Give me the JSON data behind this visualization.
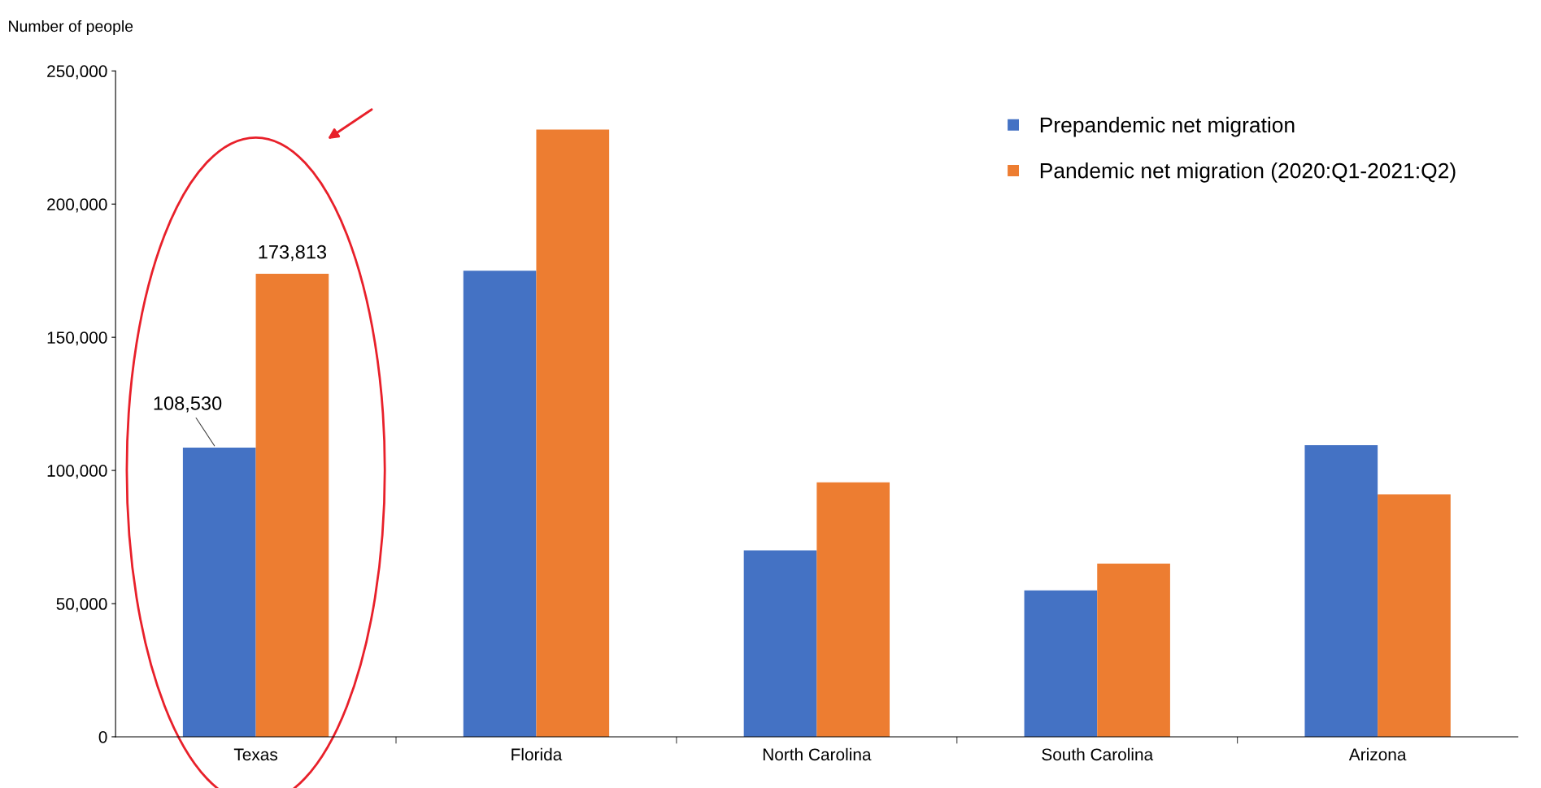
{
  "chart_data": {
    "type": "bar",
    "ylabel": "Number of people",
    "categories": [
      "Texas",
      "Florida",
      "North Carolina",
      "South Carolina",
      "Arizona"
    ],
    "series": [
      {
        "name": "Prepandemic net migration",
        "color": "#4472c4",
        "values": [
          108530,
          175000,
          70000,
          55000,
          109500
        ],
        "value_labels": [
          "108,530",
          null,
          null,
          null,
          null
        ]
      },
      {
        "name": "Pandemic net migration (2020:Q1-2021:Q2)",
        "color": "#ed7d31",
        "values": [
          173813,
          228000,
          95500,
          65000,
          91000
        ],
        "value_labels": [
          "173,813",
          null,
          null,
          null,
          null
        ]
      }
    ],
    "ylim": [
      0,
      250000
    ],
    "yticks": [
      {
        "value": 0,
        "label": "0"
      },
      {
        "value": 50000,
        "label": "50,000"
      },
      {
        "value": 100000,
        "label": "100,000"
      },
      {
        "value": 150000,
        "label": "150,000"
      },
      {
        "value": 200000,
        "label": "200,000"
      },
      {
        "value": 250000,
        "label": "250,000"
      }
    ],
    "grid": false,
    "legend": "top right"
  }
}
